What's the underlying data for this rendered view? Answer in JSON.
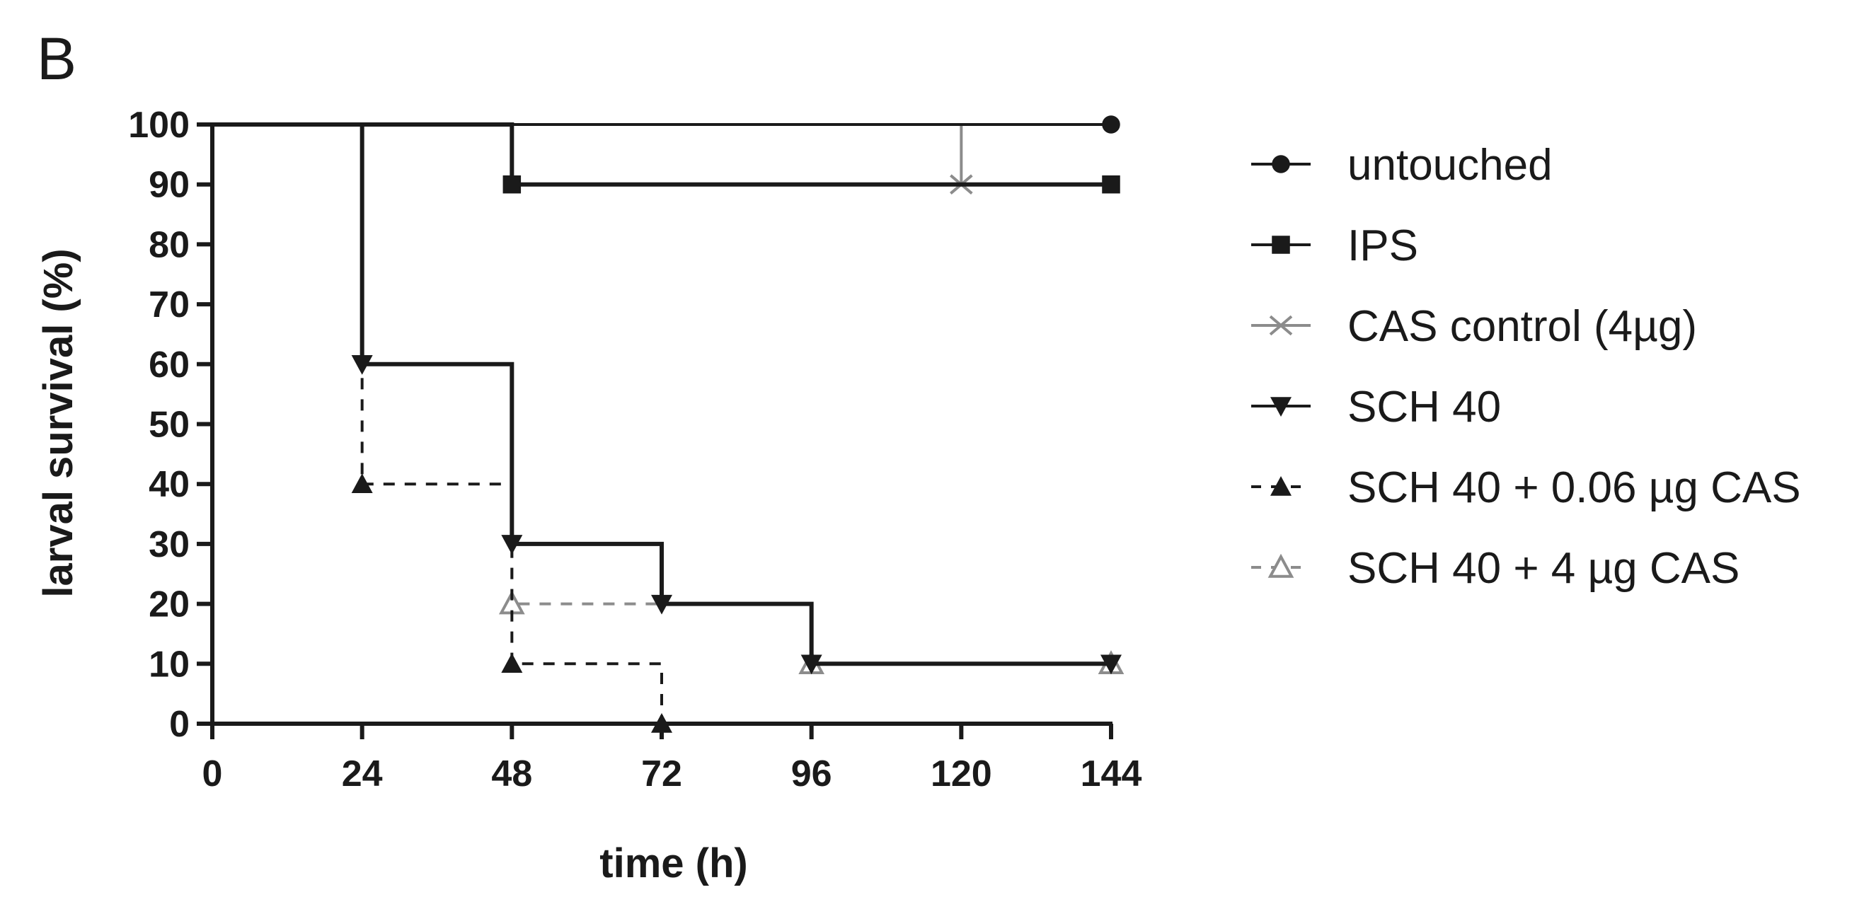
{
  "panel_label": "B",
  "chart_data": {
    "type": "line",
    "subtype": "kaplan-meier step survival curves",
    "title": "",
    "xlabel": "time (h)",
    "ylabel": "larval survival (%)",
    "xlim": [
      0,
      144
    ],
    "ylim": [
      0,
      100
    ],
    "xticks": [
      "0",
      "24",
      "48",
      "72",
      "96",
      "120",
      "144"
    ],
    "yticks": [
      "0",
      "10",
      "20",
      "30",
      "40",
      "50",
      "60",
      "70",
      "80",
      "90",
      "100"
    ],
    "grid": false,
    "legend_position": "right",
    "series": [
      {
        "name": "untouched",
        "marker": "circle-filled",
        "line": "solid",
        "color": "#1a1a1a",
        "steps": [
          [
            0,
            100
          ],
          [
            144,
            100
          ]
        ],
        "markers": [
          [
            144,
            100
          ]
        ]
      },
      {
        "name": "IPS",
        "marker": "square-filled",
        "line": "solid",
        "color": "#1a1a1a",
        "steps": [
          [
            0,
            100
          ],
          [
            48,
            90
          ],
          [
            144,
            90
          ]
        ],
        "markers": [
          [
            48,
            90
          ],
          [
            144,
            90
          ]
        ]
      },
      {
        "name": "CAS control (4µg)",
        "marker": "x",
        "line": "solid",
        "color": "#8c8c8c",
        "steps": [
          [
            0,
            100
          ],
          [
            120,
            90
          ],
          [
            144,
            90
          ]
        ],
        "markers": [
          [
            120,
            90
          ]
        ]
      },
      {
        "name": "SCH 40",
        "marker": "triangle-down-filled",
        "line": "solid",
        "color": "#1a1a1a",
        "steps": [
          [
            0,
            100
          ],
          [
            24,
            60
          ],
          [
            48,
            30
          ],
          [
            72,
            20
          ],
          [
            96,
            10
          ],
          [
            144,
            10
          ]
        ],
        "markers": [
          [
            24,
            60
          ],
          [
            48,
            30
          ],
          [
            72,
            20
          ],
          [
            96,
            10
          ],
          [
            144,
            10
          ]
        ]
      },
      {
        "name": "SCH 40 + 0.06 µg CAS",
        "marker": "triangle-up-filled",
        "line": "dashed",
        "color": "#1a1a1a",
        "steps": [
          [
            0,
            100
          ],
          [
            24,
            40
          ],
          [
            48,
            10
          ],
          [
            72,
            0
          ]
        ],
        "markers": [
          [
            24,
            40
          ],
          [
            48,
            10
          ],
          [
            72,
            0
          ]
        ]
      },
      {
        "name": "SCH 40 + 4 µg CAS",
        "marker": "triangle-up-open",
        "line": "dashed",
        "color": "#8c8c8c",
        "steps": [
          [
            0,
            100
          ],
          [
            24,
            60
          ],
          [
            48,
            20
          ],
          [
            72,
            20
          ],
          [
            96,
            10
          ],
          [
            144,
            10
          ]
        ],
        "markers": [
          [
            48,
            20
          ],
          [
            96,
            10
          ],
          [
            144,
            10
          ]
        ]
      }
    ]
  }
}
